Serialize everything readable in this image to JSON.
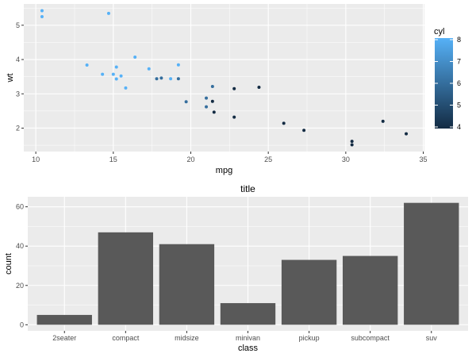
{
  "chart_data": [
    {
      "type": "scatter",
      "title": "",
      "xlabel": "mpg",
      "ylabel": "wt",
      "xlim": [
        9.225,
        35.075
      ],
      "ylim": [
        1.317,
        5.62
      ],
      "xticks": [
        10,
        15,
        20,
        25,
        30,
        35
      ],
      "yticks": [
        2,
        3,
        4,
        5
      ],
      "grid": true,
      "legend": {
        "title": "cyl",
        "placement": "right",
        "ticks": [
          4,
          5,
          6,
          7,
          8
        ],
        "low_color": "#132B43",
        "high_color": "#56B1F7",
        "range": [
          4,
          8
        ]
      },
      "points": [
        {
          "x": 21.0,
          "y": 2.62,
          "cyl": 6
        },
        {
          "x": 21.0,
          "y": 2.875,
          "cyl": 6
        },
        {
          "x": 22.8,
          "y": 2.32,
          "cyl": 4
        },
        {
          "x": 21.4,
          "y": 3.215,
          "cyl": 6
        },
        {
          "x": 18.7,
          "y": 3.44,
          "cyl": 8
        },
        {
          "x": 18.1,
          "y": 3.46,
          "cyl": 6
        },
        {
          "x": 14.3,
          "y": 3.57,
          "cyl": 8
        },
        {
          "x": 24.4,
          "y": 3.19,
          "cyl": 4
        },
        {
          "x": 22.8,
          "y": 3.15,
          "cyl": 4
        },
        {
          "x": 19.2,
          "y": 3.44,
          "cyl": 6
        },
        {
          "x": 17.8,
          "y": 3.44,
          "cyl": 6
        },
        {
          "x": 16.4,
          "y": 4.07,
          "cyl": 8
        },
        {
          "x": 17.3,
          "y": 3.73,
          "cyl": 8
        },
        {
          "x": 15.2,
          "y": 3.78,
          "cyl": 8
        },
        {
          "x": 10.4,
          "y": 5.25,
          "cyl": 8
        },
        {
          "x": 10.4,
          "y": 5.424,
          "cyl": 8
        },
        {
          "x": 14.7,
          "y": 5.345,
          "cyl": 8
        },
        {
          "x": 32.4,
          "y": 2.2,
          "cyl": 4
        },
        {
          "x": 30.4,
          "y": 1.615,
          "cyl": 4
        },
        {
          "x": 33.9,
          "y": 1.835,
          "cyl": 4
        },
        {
          "x": 21.5,
          "y": 2.465,
          "cyl": 4
        },
        {
          "x": 15.5,
          "y": 3.52,
          "cyl": 8
        },
        {
          "x": 15.2,
          "y": 3.435,
          "cyl": 8
        },
        {
          "x": 13.3,
          "y": 3.84,
          "cyl": 8
        },
        {
          "x": 19.2,
          "y": 3.845,
          "cyl": 8
        },
        {
          "x": 27.3,
          "y": 1.935,
          "cyl": 4
        },
        {
          "x": 26.0,
          "y": 2.14,
          "cyl": 4
        },
        {
          "x": 30.4,
          "y": 1.513,
          "cyl": 4
        },
        {
          "x": 15.8,
          "y": 3.17,
          "cyl": 8
        },
        {
          "x": 19.7,
          "y": 2.77,
          "cyl": 6
        },
        {
          "x": 15.0,
          "y": 3.57,
          "cyl": 8
        },
        {
          "x": 21.4,
          "y": 2.78,
          "cyl": 4
        }
      ]
    },
    {
      "type": "bar",
      "title": "title",
      "xlabel": "class",
      "ylabel": "count",
      "categories": [
        "2seater",
        "compact",
        "midsize",
        "minivan",
        "pickup",
        "subcompact",
        "suv"
      ],
      "values": [
        5,
        47,
        41,
        11,
        33,
        35,
        62
      ],
      "ylim": [
        -3.1,
        65.1
      ],
      "yticks": [
        0,
        20,
        40,
        60
      ],
      "grid": true,
      "bar_color": "#595959"
    }
  ]
}
